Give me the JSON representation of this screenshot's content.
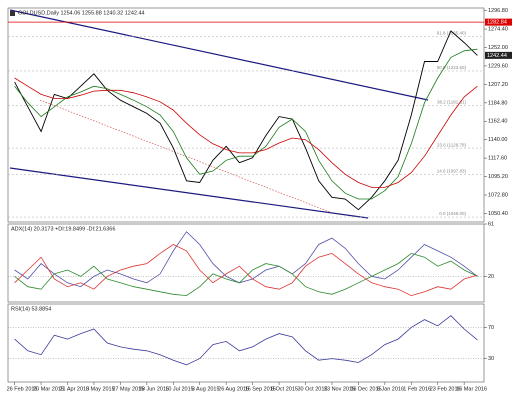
{
  "chart_data": [
    {
      "type": "line",
      "title": "GOLDUSD,Daily  1254.06 1255.88 1240.32 1242.44",
      "categories": [
        "26 Feb 2015",
        null,
        "20 Mar 2015",
        null,
        "21 Apr 2015",
        null,
        "8 May 2015",
        null,
        "27 May 2015",
        null,
        "18 Jun 2015",
        null,
        "10 Jul 2015",
        null,
        "3 Aug 2015",
        null,
        "26 Aug 2015",
        null,
        "16 Sep 2015",
        null,
        "8 Oct 2015",
        null,
        "30 Oct 2015",
        null,
        "23 Nov 2015",
        null,
        "16 Dec 2015",
        null,
        "8 Jan 2016",
        null,
        "1 Feb 2016",
        null,
        "23 Feb 2016",
        null,
        "16 Mar 2016",
        null
      ],
      "series": [
        {
          "color": "#000000",
          "values": [
            1210,
            1180,
            1150,
            1195,
            1190,
            1205,
            1220,
            1200,
            1188,
            1180,
            1172,
            1160,
            1130,
            1090,
            1088,
            1115,
            1132,
            1112,
            1118,
            1145,
            1168,
            1165,
            1130,
            1090,
            1070,
            1068,
            1055,
            1070,
            1090,
            1115,
            1170,
            1235,
            1235,
            1272,
            1258,
            1242.44
          ]
        },
        {
          "color": "#1a7a1a",
          "values": [
            1205,
            1185,
            1168,
            1180,
            1192,
            1198,
            1205,
            1202,
            1195,
            1188,
            1180,
            1170,
            1150,
            1118,
            1098,
            1102,
            1115,
            1120,
            1120,
            1132,
            1155,
            1165,
            1150,
            1115,
            1090,
            1075,
            1068,
            1068,
            1078,
            1095,
            1135,
            1185,
            1215,
            1240,
            1248,
            1250
          ]
        },
        {
          "color": "#cc0000",
          "values": [
            1215,
            1205,
            1195,
            1190,
            1190,
            1194,
            1199,
            1200,
            1200,
            1197,
            1192,
            1186,
            1176,
            1160,
            1146,
            1135,
            1128,
            1124,
            1124,
            1128,
            1136,
            1142,
            1140,
            1128,
            1112,
            1098,
            1088,
            1082,
            1082,
            1088,
            1100,
            1120,
            1145,
            1170,
            1192,
            1205
          ]
        }
      ],
      "ylim": [
        1040,
        1300
      ],
      "yticks": [
        {
          "value": 1296.8,
          "label": "1296.80"
        },
        {
          "value": 1274.4,
          "label": "1274.40"
        },
        {
          "value": 1252,
          "label": "1252.00"
        },
        {
          "value": 1229.6,
          "label": "1229.60"
        },
        {
          "value": 1207.2,
          "label": "1207.20"
        },
        {
          "value": 1184.8,
          "label": "1184.80"
        },
        {
          "value": 1162.4,
          "label": "1162.40"
        },
        {
          "value": 1140,
          "label": "1140.00"
        },
        {
          "value": 1117.6,
          "label": "1117.60"
        },
        {
          "value": 1095.2,
          "label": "1095.20"
        },
        {
          "value": 1072.8,
          "label": "1072.80"
        },
        {
          "value": 1050.4,
          "label": "1050.40"
        }
      ],
      "fib_levels": [
        {
          "value": 1265.4,
          "label": "61.8 (1265.40)"
        },
        {
          "value": 1223.5,
          "label": "50.0 (1223.50)"
        },
        {
          "value": 1181.61,
          "label": "38.2 (1181.61)"
        },
        {
          "value": 1129.78,
          "label": "23.6 (1129.78)"
        },
        {
          "value": 1097.83,
          "label": "14.6 (1097.83)"
        },
        {
          "value": 1046,
          "label": "0.0 (1046.00)"
        }
      ],
      "level_line": {
        "value": 1282.84,
        "label": "1282.84",
        "color": "#dd0000"
      },
      "last_price": 1242.44
    },
    {
      "type": "line",
      "title": "ADX(14) 20.3173 +DI:19.8499 -DI:21.6366",
      "series": [
        {
          "color": "#5050a8",
          "values": [
            25,
            18,
            30,
            22,
            15,
            12,
            20,
            25,
            22,
            18,
            15,
            22,
            40,
            55,
            45,
            30,
            20,
            15,
            18,
            25,
            28,
            22,
            30,
            45,
            50,
            42,
            30,
            20,
            18,
            25,
            35,
            45,
            40,
            35,
            28,
            20
          ]
        },
        {
          "color": "#2e8b2e",
          "values": [
            20,
            12,
            10,
            22,
            25,
            20,
            28,
            18,
            15,
            12,
            10,
            8,
            6,
            5,
            12,
            22,
            18,
            15,
            25,
            30,
            28,
            22,
            12,
            8,
            6,
            10,
            15,
            20,
            25,
            30,
            38,
            35,
            28,
            32,
            25,
            20
          ]
        },
        {
          "color": "#dd3333",
          "values": [
            15,
            25,
            35,
            18,
            12,
            15,
            10,
            20,
            25,
            28,
            30,
            38,
            45,
            40,
            25,
            15,
            22,
            28,
            18,
            12,
            10,
            15,
            28,
            35,
            38,
            30,
            22,
            15,
            12,
            10,
            5,
            8,
            12,
            10,
            18,
            21
          ]
        }
      ],
      "ylim": [
        0,
        61
      ],
      "yticks": [
        20,
        61
      ]
    },
    {
      "type": "line",
      "title": "RSI(14) 53.8854",
      "series": [
        {
          "color": "#3a3a9a",
          "values": [
            55,
            40,
            35,
            60,
            55,
            62,
            68,
            50,
            45,
            42,
            40,
            35,
            28,
            22,
            30,
            48,
            52,
            40,
            45,
            55,
            62,
            58,
            40,
            28,
            30,
            28,
            25,
            35,
            48,
            55,
            70,
            80,
            72,
            85,
            68,
            54
          ]
        }
      ],
      "ylim": [
        0,
        100
      ],
      "yticks": [
        30,
        70
      ]
    }
  ]
}
